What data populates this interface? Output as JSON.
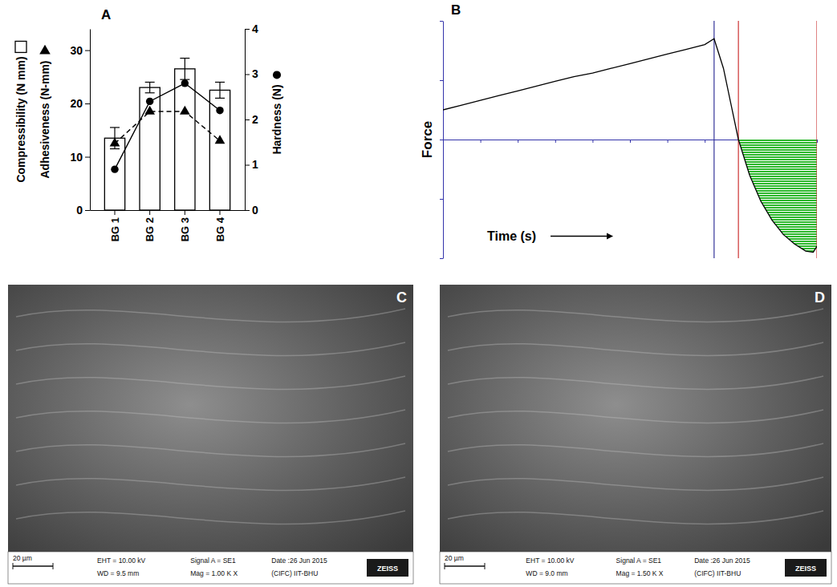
{
  "chart_data": [
    {
      "type": "bar",
      "panel": "A",
      "categories": [
        "BG 1",
        "BG 2",
        "BG 3",
        "BG 4"
      ],
      "series": [
        {
          "name": "Compressibility (N mm)",
          "type": "bar",
          "color": "#ffffff",
          "values": [
            13.5,
            23,
            26.5,
            22.5
          ],
          "errors": [
            2,
            1,
            2,
            1.5
          ]
        },
        {
          "name": "Adhesiveness (N-mm)",
          "type": "line",
          "marker": "triangle",
          "line_style": "dashed",
          "color": "#000000",
          "values": [
            12.5,
            18.5,
            18.5,
            13
          ]
        },
        {
          "name": "Hardness (N)",
          "type": "line",
          "marker": "circle",
          "line_style": "solid",
          "color": "#000000",
          "axis": "y2",
          "values": [
            0.9,
            2.4,
            2.8,
            2.2
          ]
        }
      ],
      "ylim": [
        0,
        34
      ],
      "yticks": [
        0,
        10,
        20,
        30
      ],
      "y2lim": [
        0,
        4
      ],
      "y2ticks": [
        0,
        1,
        2,
        3,
        4
      ],
      "grid": false
    },
    {
      "type": "line",
      "panel": "B",
      "xlabel": "Time (s)",
      "ylabel": "Force",
      "x": [
        0,
        0.5,
        1,
        1.5,
        2,
        2.5,
        3,
        3.5,
        4,
        4.5,
        5,
        5.5,
        6,
        6.5,
        7,
        7.25,
        7.5,
        7.7,
        7.9,
        8.2,
        8.5,
        8.8,
        9.1,
        9.4,
        9.7,
        9.9,
        10
      ],
      "values": [
        0.25,
        0.29,
        0.33,
        0.37,
        0.41,
        0.45,
        0.49,
        0.53,
        0.56,
        0.6,
        0.64,
        0.68,
        0.72,
        0.76,
        0.8,
        0.85,
        0.6,
        0.3,
        0,
        -0.3,
        -0.52,
        -0.68,
        -0.8,
        -0.88,
        -0.94,
        -0.95,
        -0.9
      ],
      "color": "#000000",
      "area_color": "#2db82d",
      "xlim": [
        0,
        10
      ],
      "xticks": [
        0,
        1,
        2,
        3,
        4,
        5,
        6,
        7,
        8,
        9,
        10
      ],
      "ylim": [
        -1,
        1
      ],
      "yticks": [
        -1,
        -0.5,
        0,
        0.5,
        1
      ],
      "tick_labels": false,
      "grid": false,
      "vlines": [
        {
          "x": 7.25,
          "color": "#333399"
        },
        {
          "x": 7.9,
          "color": "#cc3333"
        },
        {
          "x": 10,
          "color": "#cc3333"
        }
      ]
    }
  ],
  "images": [
    {
      "label": "C",
      "scale_bar": "20 µm",
      "eht": "EHT = 10.00 kV",
      "wd": "WD = 9.5 mm",
      "signal": "Signal A = SE1",
      "mag": "Mag = 1.00 K X",
      "date": "Date :26 Jun 2015",
      "lab": "(CIFC) IIT-BHU",
      "brand": "ZEISS"
    },
    {
      "label": "D",
      "scale_bar": "20 µm",
      "eht": "EHT = 10.00 kV",
      "wd": "WD = 9.0 mm",
      "signal": "Signal A = SE1",
      "mag": "Mag = 1.50 K X",
      "date": "Date :26 Jun 2015",
      "lab": "(CIFC) IIT-BHU",
      "brand": "ZEISS"
    }
  ]
}
